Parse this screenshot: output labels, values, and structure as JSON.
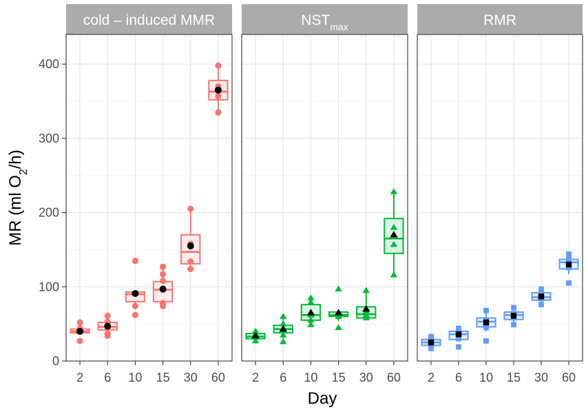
{
  "chart_data": {
    "type": "boxplot",
    "title": "",
    "xlabel": "Day",
    "ylabel": {
      "prefix": "MR (ml O",
      "subscript": "2",
      "suffix": "/h)"
    },
    "ylim": [
      0,
      440
    ],
    "yticks": [
      0,
      100,
      200,
      300,
      400
    ],
    "categories": [
      "2",
      "6",
      "10",
      "15",
      "30",
      "60"
    ],
    "grid": true,
    "facets": [
      {
        "name": "cold-induced MMR",
        "label": "cold – induced MMR",
        "color": "#F8766D",
        "marker": "circle",
        "boxes": [
          {
            "day": "2",
            "q1": 38,
            "median": 40,
            "q3": 43,
            "whisker_low": 38,
            "whisker_high": 44,
            "mean": 40,
            "points": [
              52,
              27,
              40,
              44
            ]
          },
          {
            "day": "6",
            "q1": 42,
            "median": 46,
            "q3": 52,
            "whisker_low": 42,
            "whisker_high": 61,
            "mean": 47,
            "points": [
              61,
              34,
              37,
              45,
              53
            ]
          },
          {
            "day": "10",
            "q1": 80,
            "median": 90,
            "q3": 93,
            "whisker_low": 74,
            "whisker_high": 93,
            "mean": 91,
            "points": [
              135,
              62,
              74,
              91
            ]
          },
          {
            "day": "15",
            "q1": 80,
            "median": 96,
            "q3": 107,
            "whisker_low": 74,
            "whisker_high": 127,
            "mean": 97,
            "points": [
              127,
              117,
              108,
              74,
              78,
              96
            ]
          },
          {
            "day": "30",
            "q1": 131,
            "median": 147,
            "q3": 170,
            "whisker_low": 123,
            "whisker_high": 205,
            "mean": 155,
            "points": [
              205,
              158,
              134,
              124
            ]
          },
          {
            "day": "60",
            "q1": 352,
            "median": 363,
            "q3": 378,
            "whisker_low": 335,
            "whisker_high": 398,
            "mean": 365,
            "points": [
              398,
              370,
              357,
              335
            ]
          }
        ]
      },
      {
        "name": "NSTmax",
        "label": "NST",
        "label_sub": "max",
        "color": "#00BA38",
        "marker": "triangle",
        "boxes": [
          {
            "day": "2",
            "q1": 30,
            "median": 33,
            "q3": 37,
            "whisker_low": 27,
            "whisker_high": 40,
            "mean": 34,
            "points": [
              40,
              27,
              32,
              36
            ]
          },
          {
            "day": "6",
            "q1": 38,
            "median": 43,
            "q3": 48,
            "whisker_low": 30,
            "whisker_high": 60,
            "mean": 43,
            "points": [
              60,
              26,
              35,
              44,
              50
            ]
          },
          {
            "day": "10",
            "q1": 55,
            "median": 62,
            "q3": 76,
            "whisker_low": 49,
            "whisker_high": 85,
            "mean": 65,
            "points": [
              85,
              79,
              49,
              55,
              62
            ]
          },
          {
            "day": "15",
            "q1": 60,
            "median": 62,
            "q3": 66,
            "whisker_low": 54,
            "whisker_high": 66,
            "mean": 65,
            "points": [
              97,
              45,
              60,
              64
            ]
          },
          {
            "day": "30",
            "q1": 58,
            "median": 63,
            "q3": 73,
            "whisker_low": 57,
            "whisker_high": 95,
            "mean": 70,
            "points": [
              95,
              58,
              62,
              67
            ]
          },
          {
            "day": "60",
            "q1": 145,
            "median": 165,
            "q3": 192,
            "whisker_low": 116,
            "whisker_high": 228,
            "mean": 170,
            "points": [
              228,
              180,
              157,
              116
            ]
          }
        ]
      },
      {
        "name": "RMR",
        "label": "RMR",
        "color": "#619CFF",
        "marker": "square",
        "boxes": [
          {
            "day": "2",
            "q1": 21,
            "median": 25,
            "q3": 29,
            "whisker_low": 17,
            "whisker_high": 33,
            "mean": 25,
            "points": [
              33,
              17,
              22,
              28
            ]
          },
          {
            "day": "6",
            "q1": 29,
            "median": 36,
            "q3": 40,
            "whisker_low": 29,
            "whisker_high": 44,
            "mean": 36,
            "points": [
              44,
              19,
              30,
              38
            ]
          },
          {
            "day": "10",
            "q1": 46,
            "median": 53,
            "q3": 58,
            "whisker_low": 40,
            "whisker_high": 68,
            "mean": 52,
            "points": [
              68,
              27,
              45,
              55
            ]
          },
          {
            "day": "15",
            "q1": 56,
            "median": 62,
            "q3": 66,
            "whisker_low": 49,
            "whisker_high": 72,
            "mean": 61,
            "points": [
              72,
              49,
              58,
              64
            ]
          },
          {
            "day": "30",
            "q1": 82,
            "median": 86,
            "q3": 92,
            "whisker_low": 76,
            "whisker_high": 97,
            "mean": 87,
            "points": [
              97,
              76,
              84,
              90
            ]
          },
          {
            "day": "60",
            "q1": 124,
            "median": 133,
            "q3": 137,
            "whisker_low": 117,
            "whisker_high": 144,
            "mean": 130,
            "points": [
              144,
              105,
              126,
              137
            ]
          }
        ]
      }
    ]
  }
}
